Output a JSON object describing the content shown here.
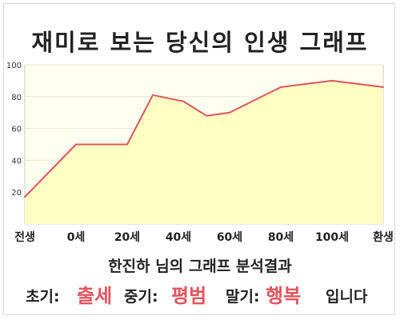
{
  "header": {
    "title": "재미로 보는 당신의 인생 그래프"
  },
  "colors": {
    "line": "#e2545d",
    "fill": "#ffffc4",
    "plot_bg": "#fffff0",
    "highlight": "#e2545d"
  },
  "chart_data": {
    "type": "area",
    "title": "재미로 보는 당신의 인생 그래프",
    "xlabel": "",
    "ylabel": "",
    "x_ticks": [
      "전생",
      "0세",
      "20세",
      "40세",
      "60세",
      "80세",
      "100세",
      "환생"
    ],
    "x_tick_positions": [
      0,
      1,
      2,
      3,
      4,
      5,
      6,
      7
    ],
    "y_ticks": [
      20,
      40,
      60,
      80,
      100
    ],
    "ylim": [
      0,
      100
    ],
    "xlim": [
      0,
      7
    ],
    "grid": "horizontal",
    "series": [
      {
        "x": [
          0,
          1,
          2,
          2.5,
          3.1,
          3.55,
          4,
          5,
          6,
          7
        ],
        "y": [
          17,
          50,
          50,
          81,
          77,
          68,
          70,
          86,
          90,
          86
        ]
      }
    ]
  },
  "summary": {
    "text": "한진하 님의 그래프 분석결과",
    "early_label": "초기:",
    "early_value": "출세",
    "middle_label": "중기:",
    "middle_value": "평범",
    "late_label": "말기:",
    "late_value": "행복",
    "ending": "입니다"
  }
}
